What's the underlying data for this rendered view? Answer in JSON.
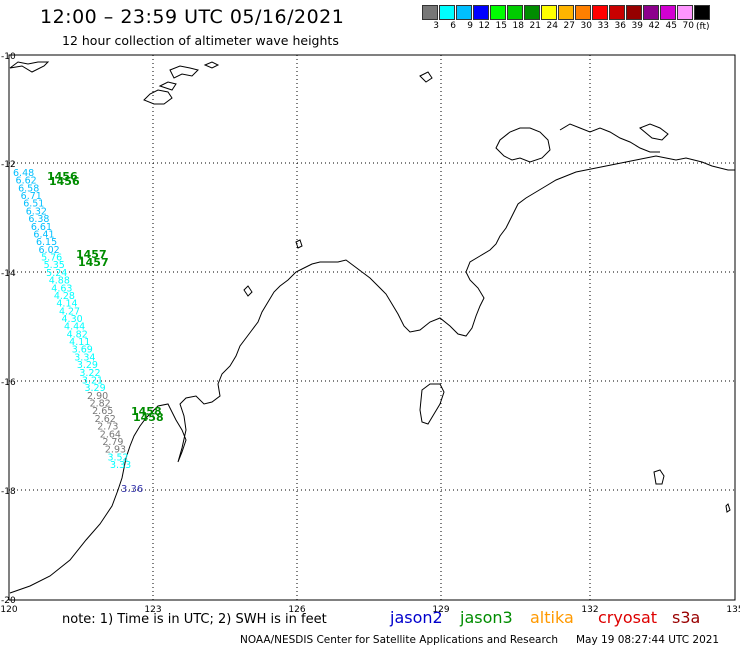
{
  "header": {
    "title": "12:00 – 23:59 UTC 05/16/2021",
    "subtitle": "12 hour collection of altimeter wave heights"
  },
  "scale": {
    "colors": [
      "#777777",
      "#00ffff",
      "#00bfff",
      "#0000ff",
      "#00ff00",
      "#00cc00",
      "#008c00",
      "#ffff00",
      "#ffb400",
      "#ff7f00",
      "#ff0000",
      "#c80000",
      "#960000",
      "#8c008c",
      "#d200d2",
      "#ff96ff",
      "#000000"
    ],
    "labels": [
      "3",
      "6",
      "9",
      "12",
      "15",
      "18",
      "21",
      "24",
      "27",
      "30",
      "33",
      "36",
      "39",
      "42",
      "45",
      "70"
    ],
    "unit": "(ft)"
  },
  "axes": {
    "lat_labels": [
      "-10",
      "-12",
      "-14",
      "-16",
      "-18",
      "-20"
    ],
    "lon_labels": [
      "120",
      "123",
      "126",
      "129",
      "132",
      "135"
    ]
  },
  "time_labels": [
    "1456",
    "1456",
    "1457",
    "1457",
    "1458",
    "1458"
  ],
  "track_values": [
    "6.48",
    "6.62",
    "6.58",
    "6.71",
    "6.51",
    "6.32",
    "6.38",
    "6.61",
    "6.41",
    "6.15",
    "6.02",
    "5.76",
    "5.35",
    "5.24",
    "4.88",
    "4.63",
    "4.28",
    "4.14",
    "4.27",
    "4.30",
    "4.44",
    "4.82",
    "4.11",
    "3.69",
    "3.34",
    "3.29",
    "3.22",
    "3.21",
    "3.29",
    "2.90",
    "2.82",
    "2.65",
    "2.62",
    "2.73",
    "2.64",
    "2.79",
    "2.93",
    "3.52",
    "3.33"
  ],
  "end_value": "3.36",
  "note": "note:  1) Time is in UTC;  2) SWH is in feet",
  "satellites": [
    {
      "name": "jason2",
      "color": "#0000cc"
    },
    {
      "name": "jason3",
      "color": "#008c00"
    },
    {
      "name": "altika",
      "color": "#ff9900"
    },
    {
      "name": "cryosat",
      "color": "#dd0000"
    },
    {
      "name": "s3a",
      "color": "#990000"
    }
  ],
  "credit": "NOAA/NESDIS Center for Satellite Applications and Research",
  "timestamp": "May 19 08:27:44 UTC 2021"
}
